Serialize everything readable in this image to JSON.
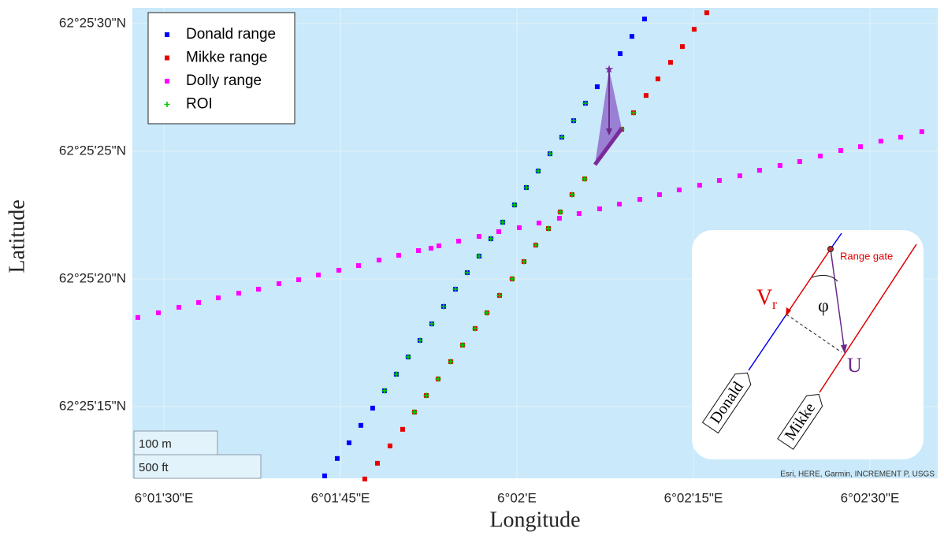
{
  "chart_data": {
    "type": "scatter",
    "x_label": "Longitude",
    "y_label": "Latitude",
    "xlim": [
      6.024256,
      6.043267
    ],
    "ylim": [
      62.420053,
      62.425172
    ],
    "xticks": [
      {
        "value": 6.025,
        "label": "6°01'30\"E"
      },
      {
        "value": 6.029167,
        "label": "6°01'45\"E"
      },
      {
        "value": 6.033333,
        "label": "6°02'E"
      },
      {
        "value": 6.0375,
        "label": "6°02'15\"E"
      },
      {
        "value": 6.041667,
        "label": "6°02'30\"E"
      }
    ],
    "yticks": [
      {
        "value": 62.425,
        "label": "62°25'30\"N"
      },
      {
        "value": 62.423611,
        "label": "62°25'25\"N"
      },
      {
        "value": 62.422222,
        "label": "62°25'20\"N"
      },
      {
        "value": 62.420833,
        "label": "62°25'15\"N"
      }
    ],
    "grid": true,
    "legend": "upper left",
    "background": "#cae9fa",
    "series": [
      {
        "name": "Donald range",
        "color": "#0000ff",
        "marker": "square",
        "x": [
          6.028795,
          6.029092,
          6.029371,
          6.02965,
          6.029929,
          6.030208,
          6.030487,
          6.030766,
          6.031045,
          6.031324,
          6.031603,
          6.031882,
          6.032161,
          6.03244,
          6.032719,
          6.032998,
          6.033277,
          6.033556,
          6.033835,
          6.034114,
          6.034393,
          6.034672,
          6.034951,
          6.03523,
          6.03577,
          6.036049,
          6.036346
        ],
        "y": [
          62.42008,
          62.420269,
          62.42044,
          62.420629,
          62.420817,
          62.421006,
          62.421186,
          62.421374,
          62.421554,
          62.421734,
          62.421923,
          62.422111,
          62.422291,
          62.422471,
          62.42266,
          62.42284,
          62.423028,
          62.423217,
          62.423397,
          62.423585,
          62.423765,
          62.423945,
          62.424134,
          62.424314,
          62.424674,
          62.424862,
          62.425051
        ]
      },
      {
        "name": "Mikke range",
        "color": "#e60000",
        "marker": "square",
        "x": [
          6.029743,
          6.030041,
          6.030338,
          6.030636,
          6.030915,
          6.031194,
          6.031473,
          6.031771,
          6.03205,
          6.032347,
          6.032626,
          6.032924,
          6.033221,
          6.0335,
          6.033779,
          6.034077,
          6.034356,
          6.034635,
          6.034933,
          6.035807,
          6.036086,
          6.036383,
          6.036662,
          6.03696,
          6.037239,
          6.037518,
          6.037816
        ],
        "y": [
          62.420046,
          62.420217,
          62.420406,
          62.420586,
          62.420774,
          62.420954,
          62.421134,
          62.421323,
          62.421503,
          62.421683,
          62.421854,
          62.422043,
          62.422223,
          62.422411,
          62.422591,
          62.422771,
          62.422951,
          62.42314,
          62.423311,
          62.423851,
          62.424031,
          62.424219,
          62.424399,
          62.424579,
          62.424751,
          62.424939,
          62.425119
        ]
      },
      {
        "name": "Dolly range",
        "color": "#ff00ff",
        "marker": "square",
        "x": [
          6.024386,
          6.02487,
          6.025354,
          6.025819,
          6.026284,
          6.026767,
          6.027232,
          6.027716,
          6.028181,
          6.028646,
          6.029129,
          6.029594,
          6.030078,
          6.030543,
          6.031008,
          6.031306,
          6.031492,
          6.031957,
          6.03244,
          6.032905,
          6.033389,
          6.033854,
          6.034337,
          6.034802,
          6.035286,
          6.035751,
          6.036235,
          6.0367,
          6.037165,
          6.037648,
          6.038113,
          6.038597,
          6.039062,
          6.039545,
          6.04001,
          6.040494,
          6.040978,
          6.041443,
          6.041926,
          6.042391,
          6.042893
        ],
        "y": [
          62.421803,
          62.421854,
          62.421914,
          62.421966,
          62.422017,
          62.422068,
          62.422111,
          62.422171,
          62.422214,
          62.422266,
          62.422317,
          62.422368,
          62.422428,
          62.42248,
          62.422531,
          62.422557,
          62.422583,
          62.422634,
          62.422685,
          62.422737,
          62.42278,
          62.422831,
          62.422883,
          62.422934,
          62.422985,
          62.423037,
          62.423088,
          62.42314,
          62.423191,
          62.423242,
          62.423294,
          62.423345,
          62.423405,
          62.423457,
          62.4235,
          62.42356,
          62.42362,
          62.423662,
          62.423722,
          62.423765,
          62.423825
        ]
      },
      {
        "name": "ROI",
        "color": "#00cc00",
        "marker": "plus",
        "x": [
          6.030208,
          6.030487,
          6.030766,
          6.031045,
          6.031324,
          6.031603,
          6.031882,
          6.032161,
          6.03244,
          6.032719,
          6.032998,
          6.033277,
          6.033556,
          6.033835,
          6.034114,
          6.034393,
          6.034672,
          6.034951,
          6.030915,
          6.031194,
          6.031473,
          6.031771,
          6.03205,
          6.032347,
          6.032626,
          6.032924,
          6.033221,
          6.0335,
          6.033779,
          6.034077,
          6.034356,
          6.034635,
          6.034933,
          6.035807,
          6.036086
        ],
        "y": [
          62.421006,
          62.421186,
          62.421374,
          62.421554,
          62.421734,
          62.421923,
          62.422111,
          62.422291,
          62.422471,
          62.42266,
          62.42284,
          62.423028,
          62.423217,
          62.423397,
          62.423585,
          62.423765,
          62.423945,
          62.424134,
          62.420774,
          62.420954,
          62.421134,
          62.421323,
          62.421503,
          62.421683,
          62.421854,
          62.422043,
          62.422223,
          62.422411,
          62.422591,
          62.422771,
          62.422951,
          62.42314,
          62.423311,
          62.423851,
          62.424031
        ]
      }
    ],
    "scale_bar": [
      "100 m",
      "500 ft"
    ],
    "attribution": "Esri, HERE, Garmin, INCREMENT P, USGS",
    "inset": {
      "range_gate": "Range gate",
      "velocity": "V",
      "velocity_subscript": "r",
      "angle": "φ",
      "vector": "U",
      "radar_1": "Donald",
      "radar_2": "Mikke"
    }
  }
}
